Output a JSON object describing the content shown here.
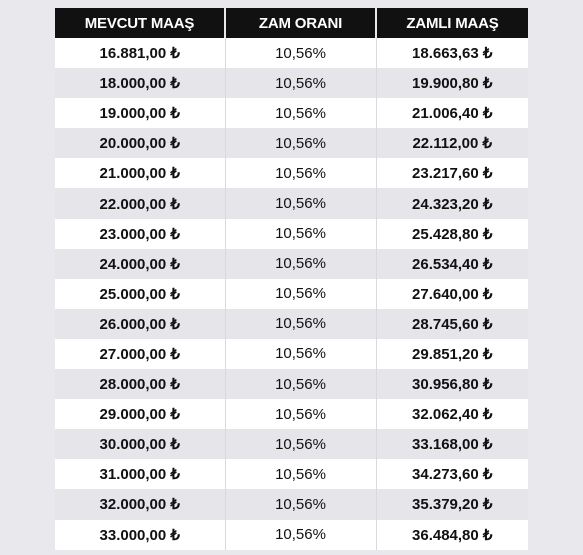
{
  "table": {
    "headers": [
      "MEVCUT MAAŞ",
      "ZAM ORANI",
      "ZAMLI MAAŞ"
    ],
    "rows": [
      [
        "16.881,00 ₺",
        "10,56%",
        "18.663,63 ₺"
      ],
      [
        "18.000,00 ₺",
        "10,56%",
        "19.900,80 ₺"
      ],
      [
        "19.000,00 ₺",
        "10,56%",
        "21.006,40 ₺"
      ],
      [
        "20.000,00 ₺",
        "10,56%",
        "22.112,00 ₺"
      ],
      [
        "21.000,00 ₺",
        "10,56%",
        "23.217,60 ₺"
      ],
      [
        "22.000,00 ₺",
        "10,56%",
        "24.323,20 ₺"
      ],
      [
        "23.000,00 ₺",
        "10,56%",
        "25.428,80 ₺"
      ],
      [
        "24.000,00 ₺",
        "10,56%",
        "26.534,40 ₺"
      ],
      [
        "25.000,00 ₺",
        "10,56%",
        "27.640,00 ₺"
      ],
      [
        "26.000,00 ₺",
        "10,56%",
        "28.745,60 ₺"
      ],
      [
        "27.000,00 ₺",
        "10,56%",
        "29.851,20 ₺"
      ],
      [
        "28.000,00 ₺",
        "10,56%",
        "30.956,80 ₺"
      ],
      [
        "29.000,00 ₺",
        "10,56%",
        "32.062,40 ₺"
      ],
      [
        "30.000,00 ₺",
        "10,56%",
        "33.168,00 ₺"
      ],
      [
        "31.000,00 ₺",
        "10,56%",
        "34.273,60 ₺"
      ],
      [
        "32.000,00 ₺",
        "10,56%",
        "35.379,20 ₺"
      ],
      [
        "33.000,00 ₺",
        "10,56%",
        "36.484,80 ₺"
      ]
    ]
  }
}
